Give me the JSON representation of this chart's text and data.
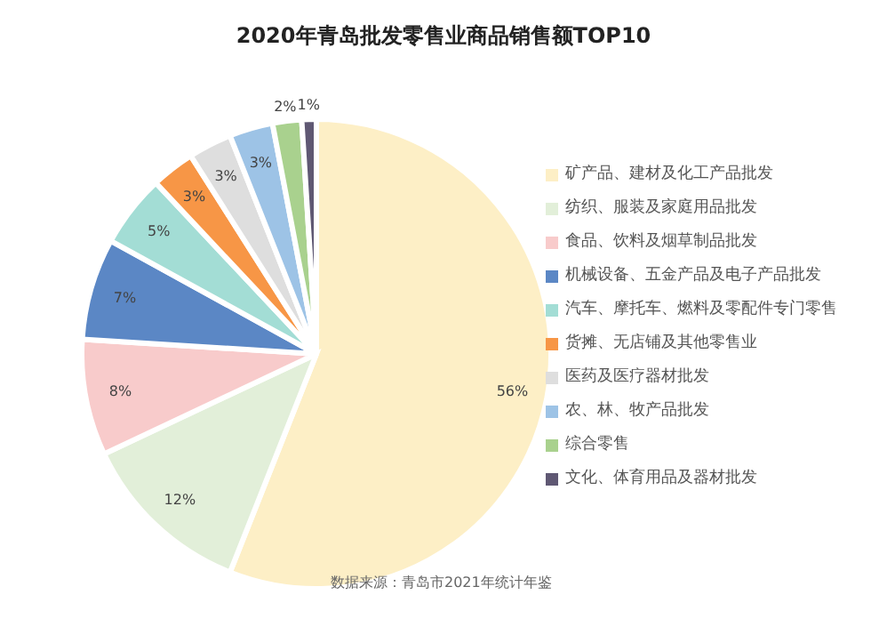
{
  "chart_data": {
    "type": "pie",
    "title": "2020年青岛批发零售业商品销售额TOP10",
    "categories": [
      "矿产品、建材及化工产品批发",
      "纺织、服装及家庭用品批发",
      "食品、饮料及烟草制品批发",
      "机械设备、五金产品及电子产品批发",
      "汽车、摩托车、燃料及零配件专门零售",
      "货摊、无店铺及其他零售业",
      "医药及医疗器材批发",
      "农、林、牧产品批发",
      "综合零售",
      "文化、体育用品及器材批发"
    ],
    "values": [
      56,
      12,
      8,
      7,
      5,
      3,
      3,
      3,
      2,
      1
    ],
    "value_labels": [
      "56%",
      "12%",
      "8%",
      "7%",
      "5%",
      "3%",
      "3%",
      "3%",
      "2%",
      "1%"
    ],
    "colors": [
      "#fdefc6",
      "#e2efd9",
      "#f8cbcb",
      "#5b87c5",
      "#a3ddd5",
      "#f79646",
      "#dedede",
      "#9dc3e6",
      "#a9d18e",
      "#5f5873"
    ],
    "legend": "right",
    "annotations": [
      "数据来源：青岛市2021年统计年鉴"
    ]
  }
}
